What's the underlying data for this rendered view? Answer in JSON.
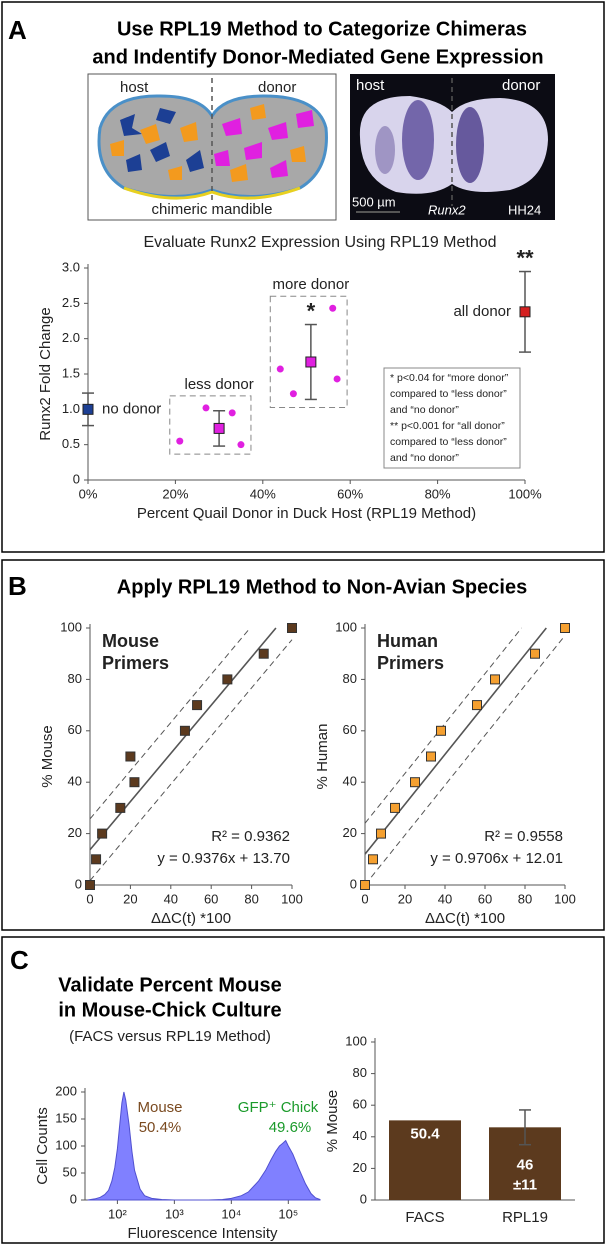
{
  "panel_a": {
    "letter": "A",
    "title_line1": "Use RPL19 Method to Categorize Chimeras",
    "title_line2": "and Indentify Donor-Mediated Gene Expression",
    "diagram": {
      "host": "host",
      "donor": "donor",
      "caption": "chimeric mandible"
    },
    "photo": {
      "host": "host",
      "donor": "donor",
      "scale": "500 µm",
      "gene": "Runx2",
      "stage": "HH24"
    }
  },
  "panel_b": {
    "letter": "B",
    "title": "Apply RPL19 Method to Non-Avian Species"
  },
  "panel_c": {
    "letter": "C",
    "title_line1": "Validate Percent Mouse",
    "title_line2": "in Mouse-Chick Culture",
    "subtitle": "(FACS versus RPL19 Method)"
  },
  "chart_data": [
    {
      "type": "scatter",
      "title": "Evaluate Runx2 Expression Using RPL19 Method",
      "xlabel": "Percent Quail Donor in Duck Host (RPL19 Method)",
      "ylabel": "Runx2 Fold Change",
      "xlim": [
        0,
        100
      ],
      "ylim": [
        0,
        3
      ],
      "xticks": [
        {
          "value": 0,
          "label": "0%"
        },
        {
          "value": 20,
          "label": "20%"
        },
        {
          "value": 40,
          "label": "40%"
        },
        {
          "value": 60,
          "label": "60%"
        },
        {
          "value": 80,
          "label": "80%"
        },
        {
          "value": 100,
          "label": "100%"
        }
      ],
      "yticks": [
        0,
        0.5,
        {
          "value": 1,
          "label": "1.0"
        },
        1.5,
        {
          "value": 2,
          "label": "2.0"
        },
        2.5,
        {
          "value": 3,
          "label": "3.0"
        }
      ],
      "groups": [
        {
          "name": "no donor",
          "color": "#1c3f94",
          "x": 0,
          "mean": 1.0,
          "error": 0.23,
          "points_x": [],
          "points_y": []
        },
        {
          "name": "less donor",
          "color": "#e020e0",
          "x": 30,
          "mean": 0.73,
          "error": 0.25,
          "points_x": [
            21,
            27,
            33,
            35
          ],
          "points_y": [
            0.55,
            1.02,
            0.95,
            0.5
          ]
        },
        {
          "name": "more donor",
          "color": "#e020e0",
          "x": 51,
          "mean": 1.67,
          "error": 0.53,
          "points_x": [
            44,
            47,
            56,
            57
          ],
          "points_y": [
            1.57,
            1.22,
            2.43,
            1.43
          ],
          "marker": "*"
        },
        {
          "name": "all donor",
          "color": "#d42020",
          "x": 100,
          "mean": 2.38,
          "error": 0.57,
          "points_x": [],
          "points_y": [],
          "marker": "**"
        }
      ],
      "notes": [
        "* p<0.04 for “more donor”",
        "compared to “less donor”",
        "and “no donor”",
        "** p<0.001 for “all donor”",
        "compared to “less donor”",
        "and “no donor”"
      ]
    },
    {
      "type": "scatter",
      "label_lines": [
        "Mouse",
        "Primers"
      ],
      "xlabel": "ΔΔC(t) *100",
      "ylabel": "% Mouse",
      "color": "#5c3a1e",
      "xlim": [
        0,
        100
      ],
      "ylim": [
        0,
        100
      ],
      "xticks": [
        0,
        20,
        40,
        60,
        80,
        100
      ],
      "yticks": [
        0,
        20,
        40,
        60,
        80,
        100
      ],
      "x": [
        0,
        3,
        6,
        15,
        20,
        22,
        47,
        53,
        68,
        86,
        100
      ],
      "values": [
        0,
        10,
        20,
        30,
        50,
        40,
        60,
        70,
        80,
        90,
        100
      ],
      "fit": {
        "slope": 0.9376,
        "intercept": 13.7
      },
      "band_halfwidth": 12,
      "r2_label": "R² = 0.9362",
      "equation": "y = 0.9376x + 13.70"
    },
    {
      "type": "scatter",
      "label_lines": [
        "Human",
        "Primers"
      ],
      "xlabel": "ΔΔC(t) *100",
      "ylabel": "% Human",
      "color": "#f5a030",
      "xlim": [
        0,
        100
      ],
      "ylim": [
        0,
        100
      ],
      "xticks": [
        0,
        20,
        40,
        60,
        80,
        100
      ],
      "yticks": [
        0,
        20,
        40,
        60,
        80,
        100
      ],
      "x": [
        0,
        4,
        8,
        15,
        25,
        33,
        38,
        56,
        65,
        85,
        100
      ],
      "values": [
        0,
        10,
        20,
        30,
        40,
        50,
        60,
        70,
        80,
        90,
        100
      ],
      "fit": {
        "slope": 0.9706,
        "intercept": 12.01
      },
      "band_halfwidth": 12,
      "r2_label": "R² = 0.9558",
      "equation": "y = 0.9706x + 12.01"
    },
    {
      "type": "area",
      "xscale": "log",
      "xlabel": "Fluorescence Intensity",
      "ylabel": "Cell Counts",
      "color": "#8080ff",
      "xlim": [
        27,
        360000
      ],
      "ylim": [
        0,
        200
      ],
      "xticks": [
        {
          "value": 100,
          "label": "10²"
        },
        {
          "value": 1000,
          "label": "10³"
        },
        {
          "value": 10000,
          "label": "10⁴"
        },
        {
          "value": 100000,
          "label": "10⁵"
        }
      ],
      "yticks": [
        0,
        50,
        100,
        150,
        200
      ],
      "x": [
        30,
        40,
        50,
        60,
        70,
        80,
        90,
        100,
        110,
        120,
        130,
        140,
        160,
        180,
        200,
        250,
        300,
        400,
        600,
        1000,
        2000,
        4000,
        7000,
        10000,
        15000,
        20000,
        30000,
        40000,
        50000,
        60000,
        70000,
        80000,
        90000,
        100000,
        120000,
        150000,
        200000,
        250000,
        300000,
        360000
      ],
      "values": [
        0,
        2,
        5,
        10,
        18,
        35,
        60,
        95,
        140,
        180,
        200,
        185,
        140,
        90,
        55,
        20,
        8,
        3,
        1,
        0,
        0,
        0,
        1,
        3,
        8,
        15,
        35,
        55,
        75,
        90,
        100,
        105,
        110,
        100,
        85,
        60,
        30,
        12,
        4,
        1
      ],
      "annotations": [
        {
          "text": "Mouse",
          "color": "#7a4a20"
        },
        {
          "text": "50.4%",
          "color": "#7a4a20"
        },
        {
          "text": "GFP⁺ Chick",
          "color": "#1a9a2a"
        },
        {
          "text": "49.6%",
          "color": "#1a9a2a"
        }
      ]
    },
    {
      "type": "bar",
      "ylabel": "% Mouse",
      "color": "#5c3a1e",
      "ylim": [
        0,
        100
      ],
      "yticks": [
        0,
        20,
        40,
        60,
        80,
        100
      ],
      "categories": [
        "FACS",
        "RPL19"
      ],
      "values": [
        50.4,
        46
      ],
      "errors": [
        null,
        11
      ],
      "error_labels": [
        null,
        "±11"
      ]
    }
  ]
}
